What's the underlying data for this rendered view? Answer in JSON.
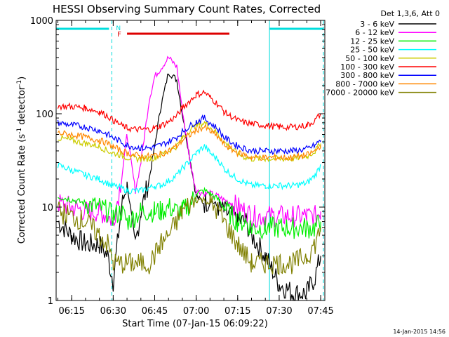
{
  "chart_data": {
    "type": "line",
    "title": "HESSI Observing Summary Count Rates, Corrected",
    "xlabel": "Start Time (07-Jan-15 06:09:22)",
    "ylabel_main": "Corrected Count Rate (s",
    "ylabel_sup1": "-1",
    "ylabel_mid": " detector",
    "ylabel_sup2": "-1",
    "ylabel_end": ")",
    "y_scale": "log",
    "ylim": [
      1,
      1000
    ],
    "xlim": [
      "06:09:22",
      "07:46:30"
    ],
    "x_ticks": [
      "06:15",
      "06:30",
      "06:45",
      "07:00",
      "07:15",
      "07:30",
      "07:45"
    ],
    "y_ticks": [
      "1",
      "10",
      "100",
      "1000"
    ],
    "legend_position": "top-right",
    "legend_header": "Det 1,3,6, Att 0",
    "footer_date": "14-Jan-2015 14:56",
    "annotations": {
      "night_periods": [
        [
          "06:09:22",
          "06:29:30"
        ],
        [
          "07:26:30",
          "07:46:00"
        ]
      ],
      "night_start_marker_label": "N",
      "flare": {
        "label": "F",
        "start": "06:35:00",
        "end": "07:12:00",
        "color": "#dd0000"
      },
      "marker_color": "#00dddd"
    },
    "x": [
      "06:10",
      "06:15",
      "06:20",
      "06:25",
      "06:28",
      "06:30",
      "06:33",
      "06:35",
      "06:38",
      "06:40",
      "06:43",
      "06:45",
      "06:47",
      "06:50",
      "06:53",
      "06:55",
      "06:58",
      "07:00",
      "07:03",
      "07:05",
      "07:08",
      "07:10",
      "07:13",
      "07:15",
      "07:18",
      "07:20",
      "07:25",
      "07:30",
      "07:35",
      "07:40",
      "07:43",
      "07:45"
    ],
    "series": [
      {
        "name": "3 - 6 keV",
        "color": "#000000",
        "values": [
          7,
          5,
          4,
          4,
          3,
          1.6,
          10,
          18,
          4,
          9,
          20,
          45,
          110,
          280,
          230,
          100,
          30,
          13,
          11,
          12,
          10,
          9,
          8,
          7,
          7,
          5,
          3,
          1.5,
          1.2,
          1.2,
          1.8,
          3
        ]
      },
      {
        "name": "6 - 12 keV",
        "color": "#ff00ff",
        "values": [
          11,
          10,
          9,
          9,
          8,
          7,
          20,
          60,
          15,
          30,
          140,
          250,
          300,
          400,
          320,
          110,
          28,
          15,
          14,
          14,
          13,
          12,
          11,
          10,
          9,
          8,
          8,
          8,
          8,
          8,
          8,
          9
        ]
      },
      {
        "name": "12 - 25 keV",
        "color": "#00ee00",
        "values": [
          13,
          12,
          11,
          10,
          9,
          8,
          9,
          7,
          8,
          9,
          9,
          9,
          9,
          10,
          9,
          9,
          11,
          14,
          15,
          14,
          12,
          10,
          8,
          7,
          7,
          6,
          6,
          6,
          6,
          6,
          6,
          7
        ]
      },
      {
        "name": "25 - 50 keV",
        "color": "#00ffff",
        "values": [
          28,
          25,
          22,
          20,
          18,
          17,
          16,
          15,
          15,
          15,
          16,
          17,
          17,
          19,
          22,
          26,
          32,
          38,
          45,
          38,
          32,
          26,
          22,
          20,
          18,
          17,
          17,
          17,
          17,
          18,
          22,
          28
        ]
      },
      {
        "name": "50 - 100 keV",
        "color": "#cccc00",
        "values": [
          55,
          52,
          48,
          45,
          40,
          38,
          36,
          34,
          33,
          33,
          33,
          34,
          36,
          40,
          45,
          55,
          68,
          75,
          80,
          72,
          60,
          50,
          42,
          37,
          34,
          33,
          33,
          33,
          33,
          35,
          40,
          48
        ]
      },
      {
        "name": "100 - 300 keV",
        "color": "#ff0000",
        "values": [
          120,
          120,
          115,
          105,
          95,
          85,
          75,
          70,
          68,
          68,
          68,
          70,
          74,
          82,
          95,
          115,
          140,
          160,
          170,
          150,
          125,
          105,
          92,
          85,
          80,
          78,
          75,
          72,
          72,
          75,
          85,
          100
        ]
      },
      {
        "name": "300 - 800 keV",
        "color": "#0000ff",
        "values": [
          80,
          76,
          72,
          66,
          60,
          55,
          50,
          46,
          44,
          43,
          43,
          44,
          46,
          50,
          56,
          64,
          75,
          82,
          90,
          80,
          68,
          56,
          49,
          45,
          42,
          40,
          40,
          40,
          40,
          42,
          46,
          52
        ]
      },
      {
        "name": "800 - 7000 keV",
        "color": "#ff8800",
        "values": [
          62,
          60,
          56,
          52,
          48,
          44,
          40,
          38,
          36,
          35,
          35,
          36,
          37,
          40,
          45,
          52,
          60,
          67,
          72,
          65,
          56,
          47,
          41,
          38,
          36,
          34,
          34,
          34,
          34,
          36,
          40,
          46
        ]
      },
      {
        "name": "7000 - 20000 keV",
        "color": "#808000",
        "values": [
          9,
          8,
          7,
          5,
          4,
          2.5,
          2.5,
          2.5,
          2.5,
          2.5,
          2.5,
          3,
          4,
          5,
          7,
          9,
          11,
          12,
          12,
          11,
          9,
          7,
          5,
          4,
          3,
          2.5,
          2.5,
          2.5,
          2.5,
          3,
          4,
          6
        ]
      }
    ]
  }
}
